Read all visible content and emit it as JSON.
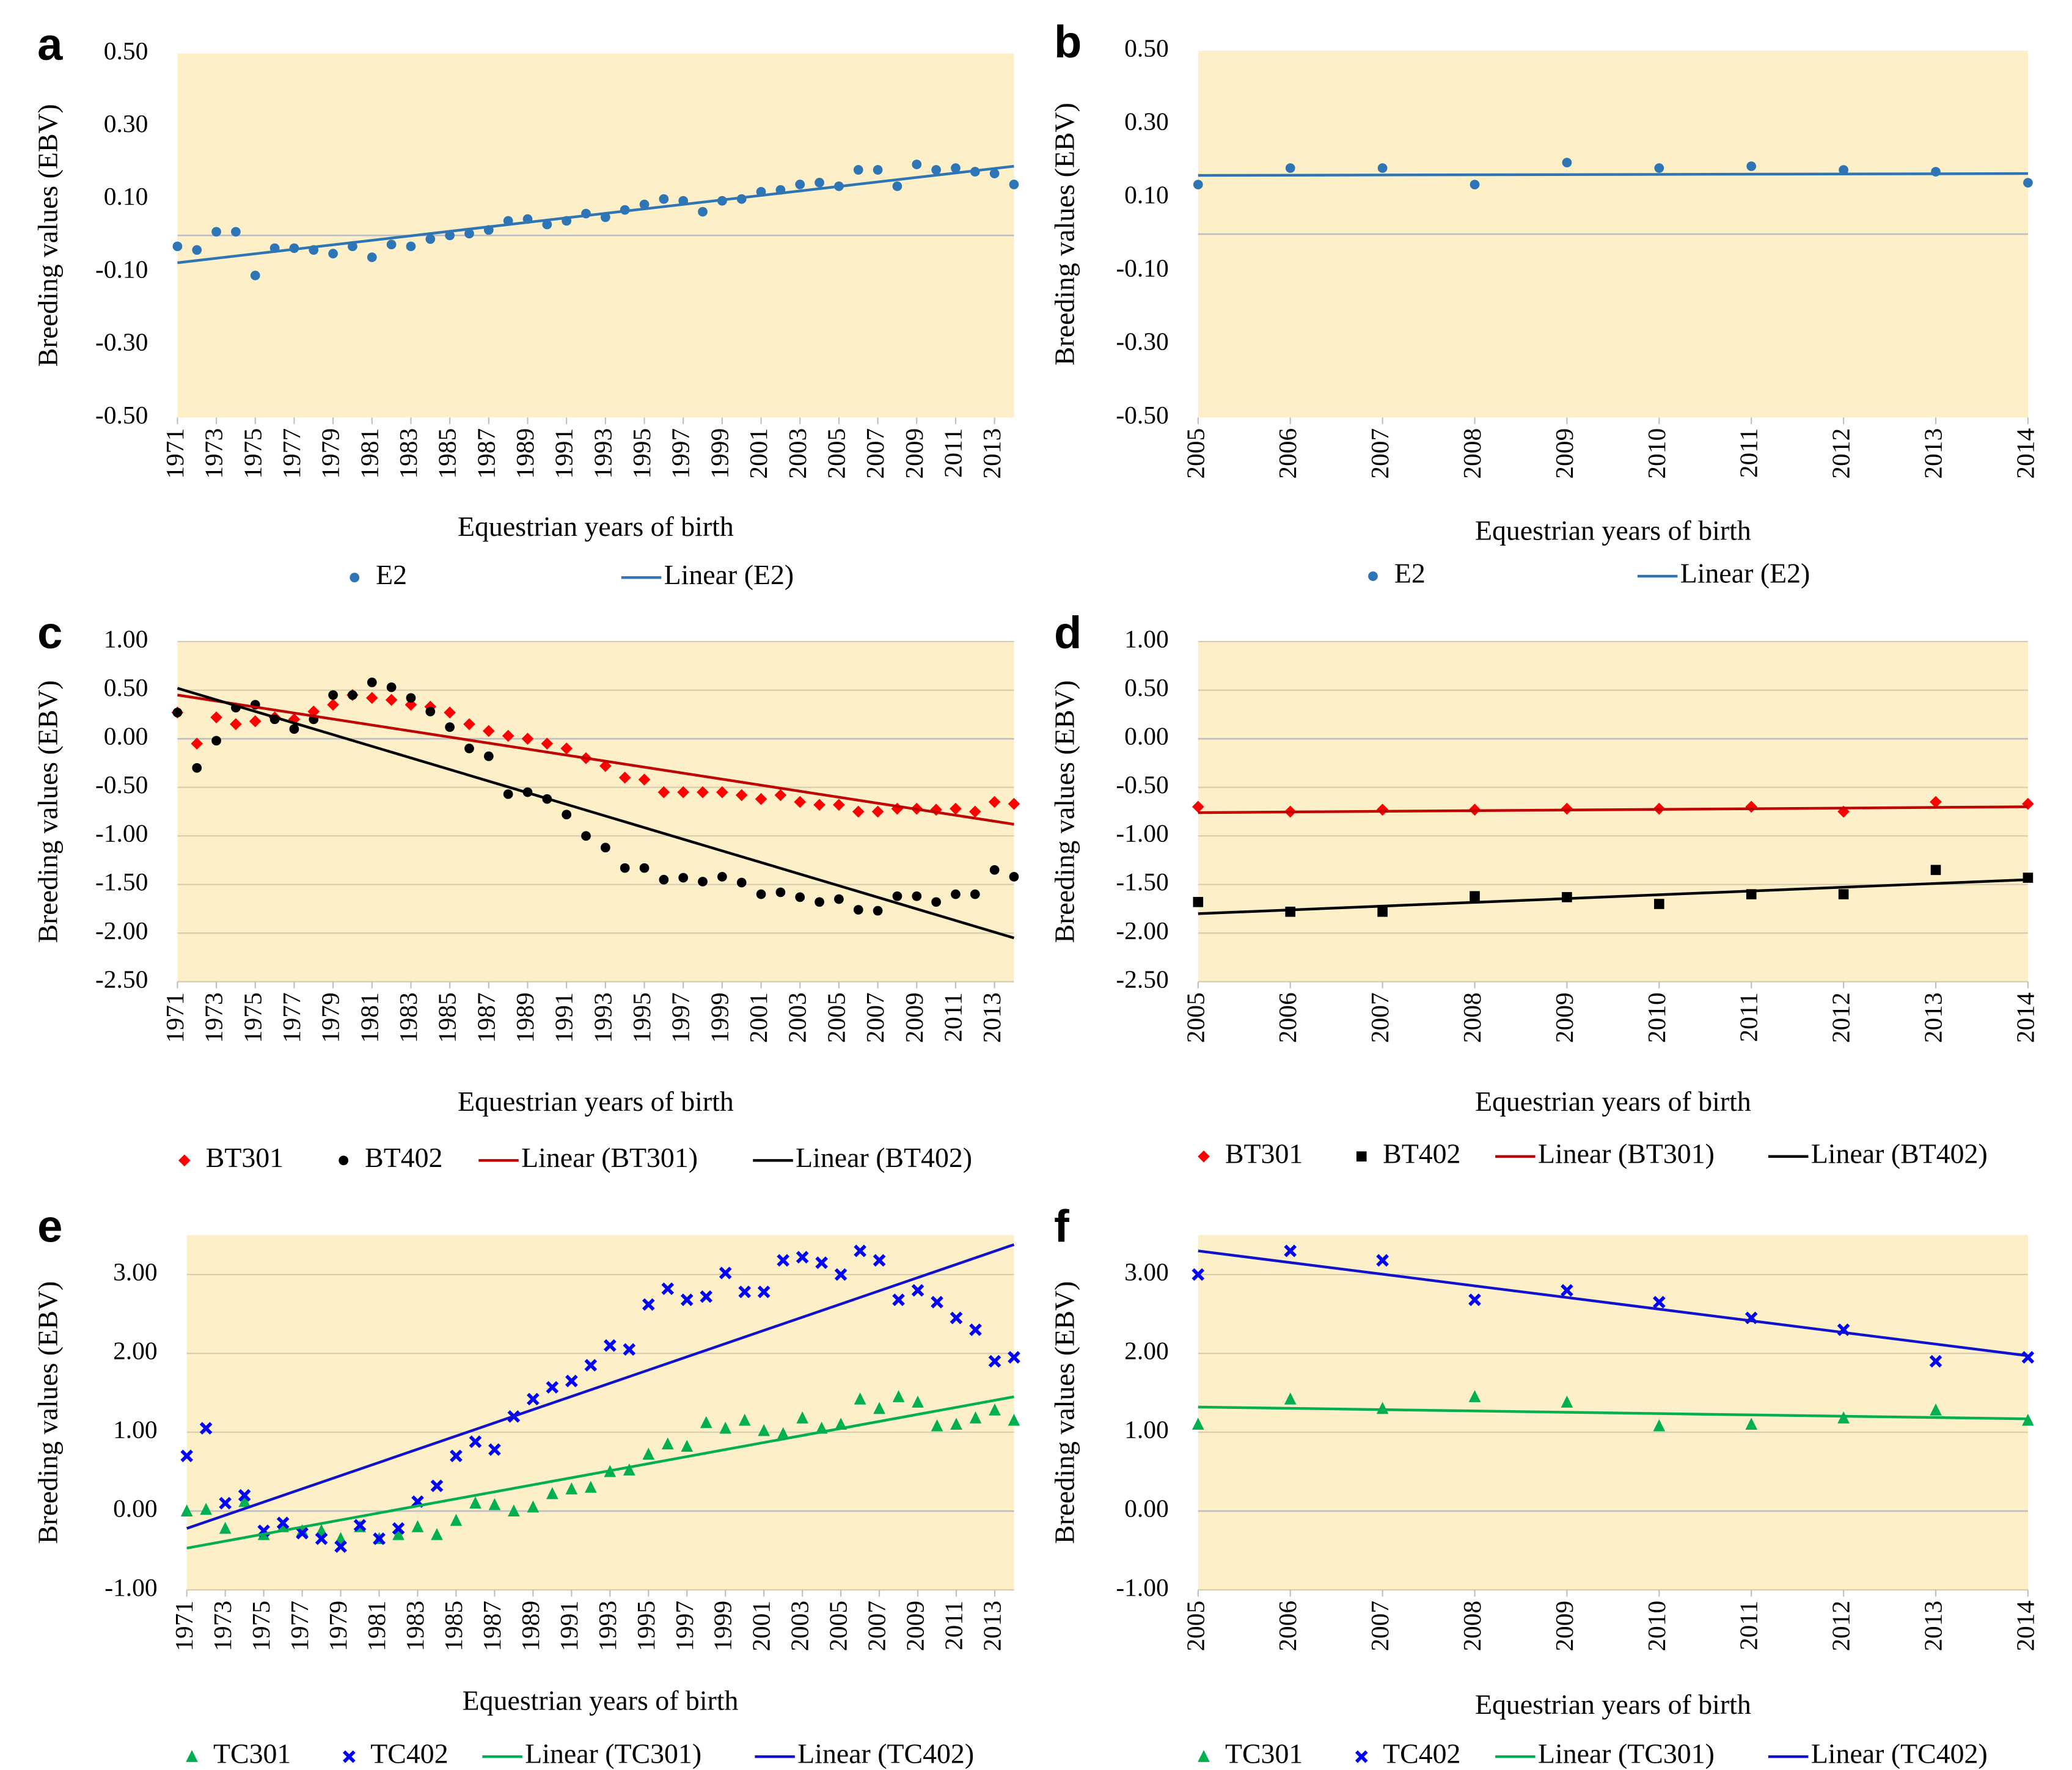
{
  "chart_data": [
    {
      "type": "scatter",
      "label": "a",
      "x_label": "Equestrian years of birth",
      "y_label": "Breeding values (EBV)",
      "xlim": [
        1971,
        2014
      ],
      "xticks": [
        1971,
        1973,
        1975,
        1977,
        1979,
        1981,
        1983,
        1985,
        1987,
        1989,
        1991,
        1993,
        1995,
        1997,
        1999,
        2001,
        2003,
        2005,
        2007,
        2009,
        2011,
        2013
      ],
      "ylim": [
        -0.5,
        0.5
      ],
      "yticks": [
        {
          "value": 0.5,
          "label": "0.50"
        },
        {
          "value": 0.3,
          "label": "0.30"
        },
        {
          "value": 0.1,
          "label": "0.10"
        },
        {
          "value": -0.1,
          "label": "-0.10"
        },
        {
          "value": -0.3,
          "label": "-0.30"
        },
        {
          "value": -0.5,
          "label": "-0.50"
        }
      ],
      "grid": false,
      "x": [
        1971,
        1972,
        1973,
        1974,
        1975,
        1976,
        1977,
        1978,
        1979,
        1980,
        1981,
        1982,
        1983,
        1984,
        1985,
        1986,
        1987,
        1988,
        1989,
        1990,
        1991,
        1992,
        1993,
        1994,
        1995,
        1996,
        1997,
        1998,
        1999,
        2000,
        2001,
        2002,
        2003,
        2004,
        2005,
        2006,
        2007,
        2008,
        2009,
        2010,
        2011,
        2012,
        2013,
        2014
      ],
      "series": [
        {
          "name": "E2",
          "color": "#2e75b6",
          "marker": "circle",
          "values": [
            -0.03,
            -0.04,
            0.01,
            0.01,
            -0.11,
            -0.035,
            -0.035,
            -0.04,
            -0.05,
            -0.03,
            -0.06,
            -0.025,
            -0.03,
            -0.01,
            0.0,
            0.005,
            0.015,
            0.04,
            0.045,
            0.03,
            0.04,
            0.06,
            0.05,
            0.07,
            0.085,
            0.1,
            0.095,
            0.065,
            0.095,
            0.1,
            0.12,
            0.125,
            0.14,
            0.145,
            0.135,
            0.18,
            0.18,
            0.135,
            0.195,
            0.18,
            0.185,
            0.175,
            0.17,
            0.14
          ]
        },
        {
          "name": "Linear (E2)",
          "color": "#2e75b6",
          "marker": "line",
          "x": [
            1971,
            2014
          ],
          "values": [
            -0.075,
            0.19
          ]
        }
      ]
    },
    {
      "type": "scatter",
      "label": "b",
      "x_label": "Equestrian years of birth",
      "y_label": "Breeding values (EBV)",
      "xlim": [
        2005,
        2014
      ],
      "xticks": [
        2005,
        2006,
        2007,
        2008,
        2009,
        2010,
        2011,
        2012,
        2013,
        2014
      ],
      "ylim": [
        -0.5,
        0.5
      ],
      "yticks": [
        {
          "value": 0.5,
          "label": "0.50"
        },
        {
          "value": 0.3,
          "label": "0.30"
        },
        {
          "value": 0.1,
          "label": "0.10"
        },
        {
          "value": -0.1,
          "label": "-0.10"
        },
        {
          "value": -0.3,
          "label": "-0.30"
        },
        {
          "value": -0.5,
          "label": "-0.50"
        }
      ],
      "grid": false,
      "x": [
        2005,
        2006,
        2007,
        2008,
        2009,
        2010,
        2011,
        2012,
        2013,
        2014
      ],
      "series": [
        {
          "name": "E2",
          "color": "#2e75b6",
          "marker": "circle",
          "values": [
            0.135,
            0.18,
            0.18,
            0.135,
            0.195,
            0.18,
            0.185,
            0.175,
            0.17,
            0.14
          ]
        },
        {
          "name": "Linear (E2)",
          "color": "#2e75b6",
          "marker": "line",
          "x": [
            2005,
            2014
          ],
          "values": [
            0.16,
            0.165
          ]
        }
      ]
    },
    {
      "type": "scatter",
      "label": "c",
      "x_label": "Equestrian years of birth",
      "y_label": "Breeding values (EBV)",
      "xlim": [
        1971,
        2014
      ],
      "xticks": [
        1971,
        1973,
        1975,
        1977,
        1979,
        1981,
        1983,
        1985,
        1987,
        1989,
        1991,
        1993,
        1995,
        1997,
        1999,
        2001,
        2003,
        2005,
        2007,
        2009,
        2011,
        2013
      ],
      "ylim": [
        -2.5,
        1.0
      ],
      "yticks": [
        {
          "value": 1.0,
          "label": "1.00"
        },
        {
          "value": 0.5,
          "label": "0.50"
        },
        {
          "value": 0,
          "label": "0.00"
        },
        {
          "value": -0.5,
          "label": "-0.50"
        },
        {
          "value": -1.0,
          "label": "-1.00"
        },
        {
          "value": -1.5,
          "label": "-1.50"
        },
        {
          "value": -2.0,
          "label": "-2.00"
        },
        {
          "value": -2.5,
          "label": "-2.50"
        }
      ],
      "grid": true,
      "x": [
        1971,
        1972,
        1973,
        1974,
        1975,
        1976,
        1977,
        1978,
        1979,
        1980,
        1981,
        1982,
        1983,
        1984,
        1985,
        1986,
        1987,
        1988,
        1989,
        1990,
        1991,
        1992,
        1993,
        1994,
        1995,
        1996,
        1997,
        1998,
        1999,
        2000,
        2001,
        2002,
        2003,
        2004,
        2005,
        2006,
        2007,
        2008,
        2009,
        2010,
        2011,
        2012,
        2013,
        2014
      ],
      "series": [
        {
          "name": "BT301",
          "color": "#ff0000",
          "marker": "diamond",
          "values": [
            0.27,
            -0.05,
            0.22,
            0.15,
            0.18,
            0.22,
            0.2,
            0.28,
            0.35,
            0.45,
            0.42,
            0.4,
            0.35,
            0.33,
            0.27,
            0.15,
            0.08,
            0.03,
            0.0,
            -0.05,
            -0.1,
            -0.2,
            -0.28,
            -0.4,
            -0.42,
            -0.55,
            -0.55,
            -0.55,
            -0.55,
            -0.58,
            -0.62,
            -0.58,
            -0.65,
            -0.68,
            -0.68,
            -0.75,
            -0.75,
            -0.72,
            -0.72,
            -0.73,
            -0.72,
            -0.75,
            -0.65,
            -0.67
          ]
        },
        {
          "name": "BT402",
          "color": "#000000",
          "marker": "circle",
          "values": [
            0.27,
            -0.3,
            -0.02,
            0.32,
            0.35,
            0.2,
            0.1,
            0.2,
            0.45,
            0.45,
            0.58,
            0.53,
            0.42,
            0.28,
            0.12,
            -0.1,
            -0.18,
            -0.57,
            -0.55,
            -0.62,
            -0.78,
            -1.0,
            -1.12,
            -1.33,
            -1.33,
            -1.45,
            -1.43,
            -1.47,
            -1.42,
            -1.48,
            -1.6,
            -1.58,
            -1.63,
            -1.68,
            -1.65,
            -1.76,
            -1.77,
            -1.62,
            -1.62,
            -1.68,
            -1.6,
            -1.6,
            -1.35,
            -1.42
          ]
        },
        {
          "name": "Linear (BT301)",
          "color": "#c00000",
          "marker": "line",
          "x": [
            1971,
            2014
          ],
          "values": [
            0.45,
            -0.88
          ]
        },
        {
          "name": "Linear (BT402)",
          "color": "#000000",
          "marker": "line",
          "x": [
            1971,
            2014
          ],
          "values": [
            0.52,
            -2.05
          ]
        }
      ]
    },
    {
      "type": "scatter",
      "label": "d",
      "x_label": "Equestrian years of birth",
      "y_label": "Breeding values (EBV)",
      "xlim": [
        2005,
        2014
      ],
      "xticks": [
        2005,
        2006,
        2007,
        2008,
        2009,
        2010,
        2011,
        2012,
        2013,
        2014
      ],
      "ylim": [
        -2.5,
        1.0
      ],
      "yticks": [
        {
          "value": 1.0,
          "label": "1.00"
        },
        {
          "value": 0.5,
          "label": "0.50"
        },
        {
          "value": 0,
          "label": "0.00"
        },
        {
          "value": -0.5,
          "label": "-0.50"
        },
        {
          "value": -1.0,
          "label": "-1.00"
        },
        {
          "value": -1.5,
          "label": "-1.50"
        },
        {
          "value": -2.0,
          "label": "-2.00"
        },
        {
          "value": -2.5,
          "label": "-2.50"
        }
      ],
      "grid": true,
      "x": [
        2005,
        2006,
        2007,
        2008,
        2009,
        2010,
        2011,
        2012,
        2013,
        2014
      ],
      "series": [
        {
          "name": "BT301",
          "color": "#ff0000",
          "marker": "diamond",
          "values": [
            -0.7,
            -0.75,
            -0.73,
            -0.73,
            -0.72,
            -0.72,
            -0.7,
            -0.75,
            -0.65,
            -0.67
          ]
        },
        {
          "name": "BT402",
          "color": "#000000",
          "marker": "square",
          "values": [
            -1.68,
            -1.78,
            -1.78,
            -1.62,
            -1.63,
            -1.7,
            -1.6,
            -1.6,
            -1.35,
            -1.43
          ]
        },
        {
          "name": "Linear (BT301)",
          "color": "#c00000",
          "marker": "line",
          "x": [
            2005,
            2014
          ],
          "values": [
            -0.76,
            -0.7
          ]
        },
        {
          "name": "Linear (BT402)",
          "color": "#000000",
          "marker": "line",
          "x": [
            2005,
            2014
          ],
          "values": [
            -1.8,
            -1.45
          ]
        }
      ]
    },
    {
      "type": "scatter",
      "label": "e",
      "x_label": "Equestrian years of birth",
      "y_label": "Breeding values (EBV)",
      "xlim": [
        1971,
        2014
      ],
      "xticks": [
        1971,
        1973,
        1975,
        1977,
        1979,
        1981,
        1983,
        1985,
        1987,
        1989,
        1991,
        1993,
        1995,
        1997,
        1999,
        2001,
        2003,
        2005,
        2007,
        2009,
        2011,
        2013
      ],
      "ylim": [
        -1.0,
        3.5
      ],
      "yticks": [
        {
          "value": 3.0,
          "label": "3.00"
        },
        {
          "value": 2.0,
          "label": "2.00"
        },
        {
          "value": 1.0,
          "label": "1.00"
        },
        {
          "value": 0,
          "label": "0.00"
        },
        {
          "value": -1.0,
          "label": "-1.00"
        }
      ],
      "grid": true,
      "x": [
        1971,
        1972,
        1973,
        1974,
        1975,
        1976,
        1977,
        1978,
        1979,
        1980,
        1981,
        1982,
        1983,
        1984,
        1985,
        1986,
        1987,
        1988,
        1989,
        1990,
        1991,
        1992,
        1993,
        1994,
        1995,
        1996,
        1997,
        1998,
        1999,
        2000,
        2001,
        2002,
        2003,
        2004,
        2005,
        2006,
        2007,
        2008,
        2009,
        2010,
        2011,
        2012,
        2013,
        2014
      ],
      "series": [
        {
          "name": "TC301",
          "color": "#00b050",
          "marker": "triangle",
          "values": [
            0.0,
            0.02,
            -0.22,
            0.12,
            -0.3,
            -0.2,
            -0.25,
            -0.25,
            -0.35,
            -0.2,
            -0.35,
            -0.3,
            -0.2,
            -0.3,
            -0.12,
            0.1,
            0.08,
            0.0,
            0.05,
            0.22,
            0.28,
            0.3,
            0.5,
            0.52,
            0.72,
            0.85,
            0.82,
            1.12,
            1.05,
            1.15,
            1.02,
            0.98,
            1.18,
            1.05,
            1.1,
            1.42,
            1.3,
            1.45,
            1.38,
            1.08,
            1.1,
            1.18,
            1.28,
            1.15
          ]
        },
        {
          "name": "TC402",
          "color": "#0000ff",
          "marker": "x",
          "values": [
            0.7,
            1.05,
            0.1,
            0.2,
            -0.25,
            -0.15,
            -0.28,
            -0.35,
            -0.45,
            -0.18,
            -0.35,
            -0.22,
            0.12,
            0.32,
            0.7,
            0.88,
            0.78,
            1.2,
            1.42,
            1.57,
            1.65,
            1.85,
            2.1,
            2.05,
            2.62,
            2.82,
            2.68,
            2.72,
            3.02,
            2.78,
            2.78,
            3.18,
            3.22,
            3.15,
            3.0,
            3.3,
            3.18,
            2.68,
            2.8,
            2.65,
            2.45,
            2.3,
            1.9,
            1.95
          ]
        },
        {
          "name": "Linear (TC301)",
          "color": "#00b050",
          "marker": "line",
          "x": [
            1971,
            2014
          ],
          "values": [
            -0.47,
            1.45
          ]
        },
        {
          "name": "Linear (TC402)",
          "color": "#1010d0",
          "marker": "line",
          "x": [
            1971,
            2014
          ],
          "values": [
            -0.22,
            3.38
          ]
        }
      ]
    },
    {
      "type": "scatter",
      "label": "f",
      "x_label": "Equestrian years of birth",
      "y_label": "Breeding values (EBV)",
      "xlim": [
        2005,
        2014
      ],
      "xticks": [
        2005,
        2006,
        2007,
        2008,
        2009,
        2010,
        2011,
        2012,
        2013,
        2014
      ],
      "ylim": [
        -1.0,
        3.5
      ],
      "yticks": [
        {
          "value": 3.0,
          "label": "3.00"
        },
        {
          "value": 2.0,
          "label": "2.00"
        },
        {
          "value": 1.0,
          "label": "1.00"
        },
        {
          "value": 0,
          "label": "0.00"
        },
        {
          "value": -1.0,
          "label": "-1.00"
        }
      ],
      "grid": true,
      "x": [
        2005,
        2006,
        2007,
        2008,
        2009,
        2010,
        2011,
        2012,
        2013,
        2014
      ],
      "series": [
        {
          "name": "TC301",
          "color": "#00b050",
          "marker": "triangle",
          "values": [
            1.1,
            1.42,
            1.3,
            1.45,
            1.38,
            1.08,
            1.1,
            1.18,
            1.28,
            1.15
          ]
        },
        {
          "name": "TC402",
          "color": "#0000ff",
          "marker": "x",
          "values": [
            3.0,
            3.3,
            3.18,
            2.68,
            2.8,
            2.65,
            2.45,
            2.3,
            1.9,
            1.95
          ]
        },
        {
          "name": "Linear (TC301)",
          "color": "#00b050",
          "marker": "line",
          "x": [
            2005,
            2014
          ],
          "values": [
            1.32,
            1.17
          ]
        },
        {
          "name": "Linear (TC402)",
          "color": "#1010d0",
          "marker": "line",
          "x": [
            2005,
            2014
          ],
          "values": [
            3.3,
            1.97
          ]
        }
      ]
    }
  ]
}
